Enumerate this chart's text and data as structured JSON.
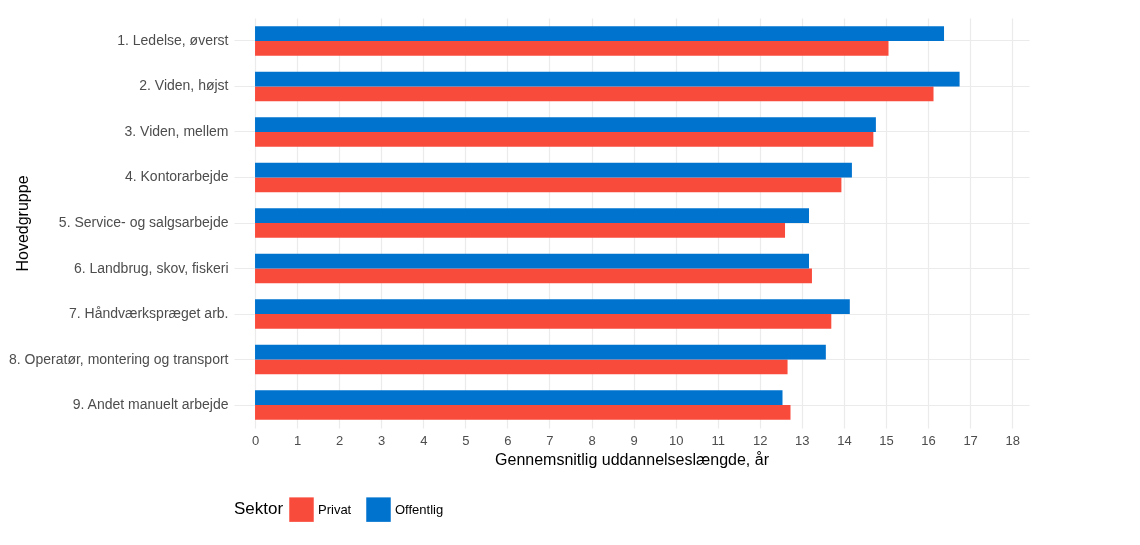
{
  "chart_data": {
    "type": "bar",
    "orientation": "horizontal",
    "xlabel": "Gennemsnitlig uddannelseslængde, år",
    "ylabel": "Hovedgruppe",
    "legend_title": "Sektor",
    "legend": "bottom",
    "grid": true,
    "categories": [
      "1. Ledelse, øverst",
      "2. Viden, højst",
      "3. Viden, mellem",
      "4. Kontorarbejde",
      "5. Service- og salgsarbejde",
      "6. Landbrug, skov, fiskeri",
      "7. Håndværkspræget arb.",
      "8. Operatør, montering og transport",
      "9. Andet manuelt arbejde"
    ],
    "series": [
      {
        "name": "Privat",
        "color": "#f94b3c",
        "values": [
          15.06,
          16.13,
          14.7,
          13.94,
          12.6,
          13.24,
          13.7,
          12.66,
          12.73
        ]
      },
      {
        "name": "Offentlig",
        "color": "#0073cf",
        "values": [
          16.38,
          16.75,
          14.76,
          14.19,
          13.17,
          13.17,
          14.14,
          13.57,
          12.54
        ]
      }
    ],
    "xlim": [
      -0.5,
      18.4
    ],
    "xticks": [
      0,
      1,
      2,
      3,
      4,
      5,
      6,
      7,
      8,
      9,
      10,
      11,
      12,
      13,
      14,
      15,
      16,
      17,
      18
    ]
  }
}
